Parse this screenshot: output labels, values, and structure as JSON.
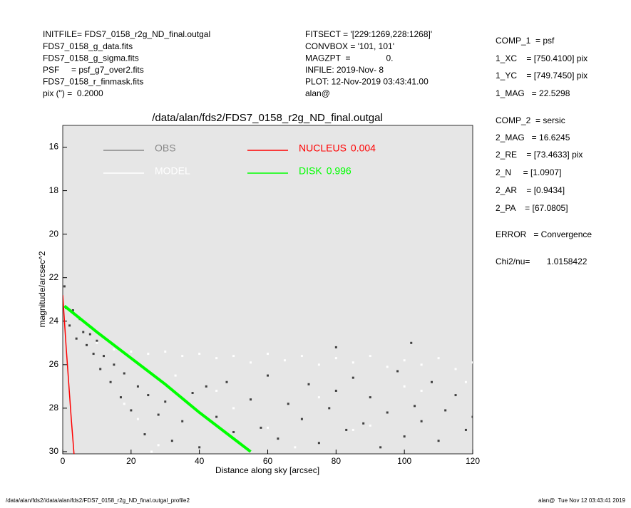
{
  "header": {
    "left": [
      "INITFILE= FDS7_0158_r2g_ND_final.outgal",
      "FDS7_0158_g_data.fits",
      "FDS7_0158_g_sigma.fits",
      "PSF     = psf_g7_over2.fits",
      "FDS7_0158_r_finmask.fits",
      "pix (\") =  0.2000"
    ],
    "middle": [
      "FITSECT = '[229:1269,228:1268]'",
      "CONVBOX = '101, 101'",
      "MAGZPT  =               0.",
      "INFILE: 2019-Nov- 8",
      "PLOT: 12-Nov-2019 03:43:41.00",
      "alan@"
    ],
    "right": [
      "COMP_1  = psf",
      "1_XC    = [750.4100] pix",
      "1_YC    = [749.7450] pix",
      "1_MAG   = 22.5298",
      "COMP_2  = sersic",
      "2_MAG   = 16.6245",
      "2_RE    = [73.4633] pix",
      "2_N     = [1.0907]",
      "2_AR    = [0.9434]",
      "2_PA    = [67.0805]",
      "ERROR   = Convergence",
      "Chi2/nu=       1.0158422"
    ]
  },
  "footer": {
    "left": "/data/alan/fds2//data/alan/fds2/FDS7_0158_r2g_ND_final.outgal_profile2",
    "right": "alan@  Tue Nov 12 03:43:41 2019"
  },
  "chart_data": {
    "type": "scatter",
    "title": "/data/alan/fds2/FDS7_0158_r2g_ND_final.outgal",
    "x_label": "Distance along sky [arcsec]",
    "y_label": "magnitude/arcsec^2",
    "xlim": [
      0,
      120
    ],
    "xticks": [
      0,
      20,
      40,
      60,
      80,
      100,
      120
    ],
    "ylim": [
      15,
      30.1
    ],
    "yticks": [
      16,
      18,
      20,
      22,
      24,
      26,
      28,
      30
    ],
    "y_inverted": true,
    "background": "#e6e6e6",
    "series": [
      {
        "name": "OBS",
        "color": "#404040",
        "legend_color": "#888888",
        "mode": "points",
        "x": [
          0.5,
          1,
          2,
          3,
          4,
          5,
          6,
          7,
          8,
          9,
          10,
          11,
          12,
          14,
          15,
          17,
          18,
          20,
          22,
          24,
          25,
          28,
          30,
          32,
          35,
          38,
          40,
          42,
          45,
          48,
          50,
          55,
          58,
          60,
          63,
          66,
          70,
          72,
          75,
          78,
          80,
          83,
          85,
          88,
          90,
          93,
          95,
          98,
          100,
          103,
          105,
          108,
          110,
          112,
          115,
          118,
          120,
          80,
          102
        ],
        "values": [
          22.4,
          23.4,
          24.2,
          23.5,
          24.8,
          23.9,
          24.5,
          25.1,
          24.6,
          25.5,
          24.9,
          26.2,
          25.6,
          26.8,
          26.0,
          27.5,
          26.4,
          28.1,
          27.0,
          29.2,
          27.4,
          28.3,
          27.7,
          29.5,
          28.6,
          27.3,
          29.8,
          27.0,
          28.4,
          26.8,
          29.1,
          27.6,
          28.9,
          26.5,
          29.4,
          27.8,
          28.5,
          26.9,
          29.6,
          28.0,
          27.2,
          29.0,
          26.6,
          28.7,
          27.5,
          29.8,
          28.2,
          26.3,
          29.3,
          27.9,
          28.6,
          26.8,
          29.5,
          28.1,
          27.4,
          29.0,
          28.4,
          25.2,
          25.0
        ]
      },
      {
        "name": "MODEL",
        "color": "#ffffff",
        "legend_color": "#ffffff",
        "mode": "points",
        "x": [
          10,
          15,
          20,
          25,
          30,
          35,
          40,
          45,
          50,
          55,
          60,
          65,
          70,
          75,
          80,
          85,
          90,
          95,
          100,
          105,
          110,
          115,
          120,
          22,
          28,
          33,
          45,
          60,
          75,
          90,
          105,
          118,
          18,
          26,
          50,
          68,
          85,
          100
        ],
        "values": [
          25.0,
          25.3,
          25.4,
          25.5,
          25.4,
          25.6,
          25.5,
          25.7,
          25.6,
          25.9,
          25.5,
          25.8,
          25.6,
          26.0,
          25.7,
          25.9,
          25.6,
          26.1,
          25.8,
          26.0,
          25.7,
          26.2,
          25.9,
          28.5,
          29.7,
          26.5,
          27.2,
          28.9,
          27.5,
          28.8,
          27.2,
          26.8,
          27.8,
          30.0,
          28.0,
          29.8,
          29.0,
          27.0
        ]
      },
      {
        "name": "NUCLEUS",
        "fraction": 0.004,
        "color": "#ff0000",
        "legend_color": "#ff0000",
        "mode": "line",
        "x": [
          0,
          0.5,
          1,
          1.5,
          2,
          2.5,
          3,
          3.3
        ],
        "values": [
          22.8,
          24.0,
          25.2,
          26.3,
          27.4,
          28.5,
          29.5,
          30.1
        ]
      },
      {
        "name": "DISK",
        "fraction": 0.996,
        "color": "#00ff00",
        "legend_color": "#00ff00",
        "mode": "line",
        "x": [
          0.5,
          10,
          20,
          30,
          40,
          50,
          55
        ],
        "values": [
          23.3,
          24.5,
          25.7,
          26.9,
          28.2,
          29.4,
          30.0
        ]
      }
    ]
  }
}
